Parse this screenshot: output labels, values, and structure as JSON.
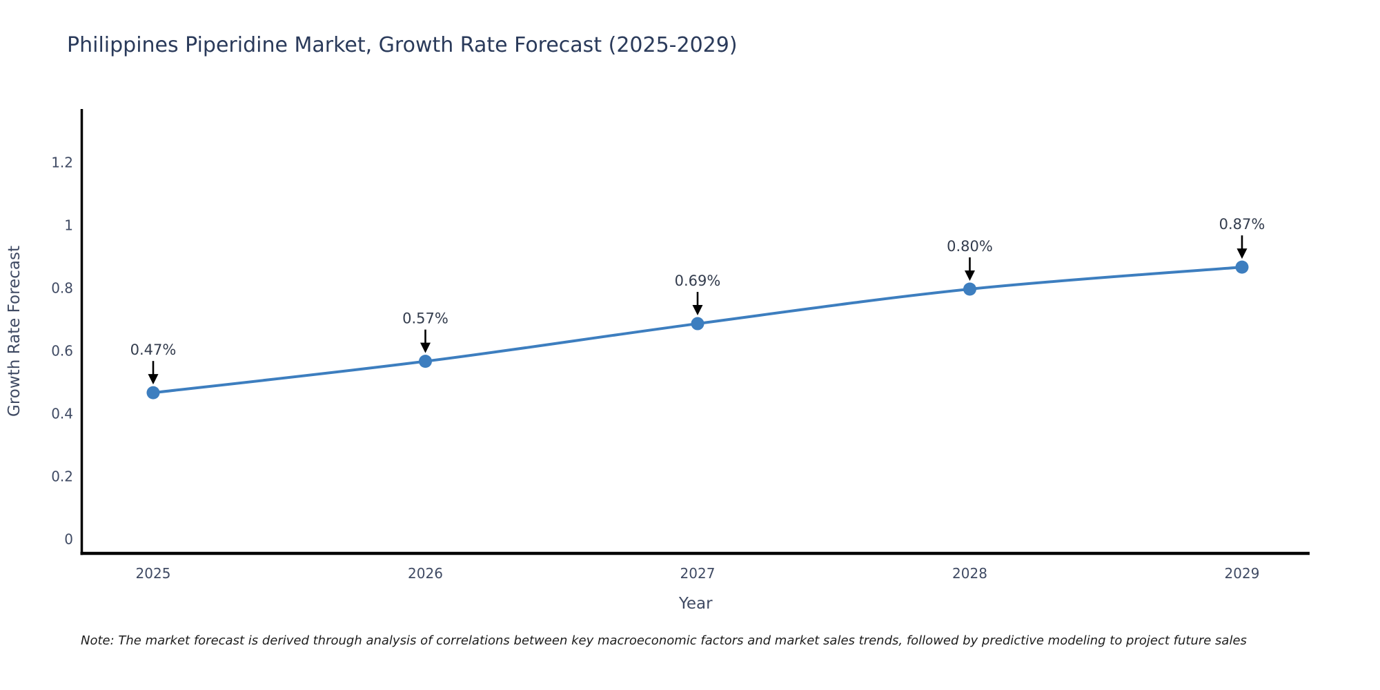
{
  "title": "Philippines Piperidine Market, Growth Rate Forecast (2025-2029)",
  "note": "Note: The market forecast is derived through analysis of correlations between key macroeconomic factors and market sales trends, followed by predictive modeling to project future sales",
  "colors": {
    "line": "#3d7ebf",
    "marker": "#3d7ebf",
    "title_text": "#2a3a5a",
    "axis_text": "#3f4a63",
    "annotation_text": "#333c4d",
    "axis_line": "#000000",
    "arrow": "#000000",
    "background": "#ffffff"
  },
  "chart_data": {
    "type": "line",
    "title": "Philippines Piperidine Market, Growth Rate Forecast (2025-2029)",
    "xlabel": "Year",
    "ylabel": "Growth Rate Forecast",
    "x": [
      2025,
      2026,
      2027,
      2028,
      2029
    ],
    "values": [
      0.47,
      0.57,
      0.69,
      0.8,
      0.87
    ],
    "point_labels": [
      "0.47%",
      "0.57%",
      "0.69%",
      "0.80%",
      "0.87%"
    ],
    "yticks": [
      0,
      0.2,
      0.4,
      0.6,
      0.8,
      1,
      1.2
    ],
    "ytick_labels": [
      "0",
      "0.2",
      "0.4",
      "0.6",
      "0.8",
      "1",
      "1.2"
    ],
    "ylim": [
      0,
      1.37
    ],
    "grid": false,
    "legend_position": "none",
    "marker_style": "circle",
    "annotation_style": "black-down-arrow-to-point"
  }
}
